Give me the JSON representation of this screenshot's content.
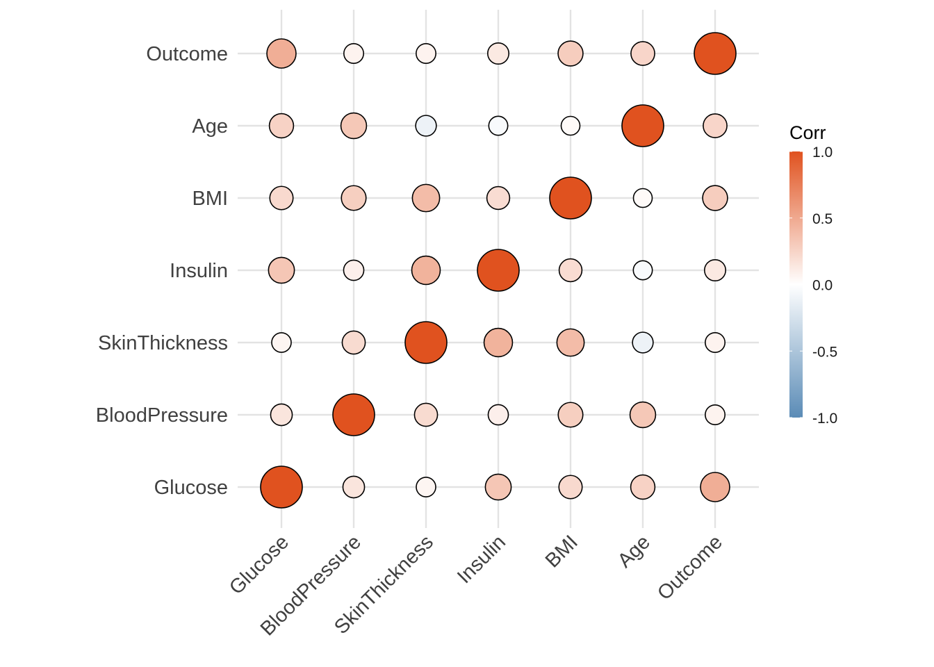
{
  "chart_data": {
    "type": "correlation-plot",
    "title": "",
    "xlabel": "",
    "ylabel": "",
    "variables": [
      "Glucose",
      "BloodPressure",
      "SkinThickness",
      "Insulin",
      "BMI",
      "Age",
      "Outcome"
    ],
    "matrix": [
      [
        1.0,
        0.15,
        0.06,
        0.33,
        0.22,
        0.26,
        0.47
      ],
      [
        0.15,
        1.0,
        0.21,
        0.09,
        0.28,
        0.32,
        0.07
      ],
      [
        0.06,
        0.21,
        1.0,
        0.44,
        0.39,
        -0.11,
        0.07
      ],
      [
        0.33,
        0.09,
        0.44,
        1.0,
        0.2,
        -0.04,
        0.13
      ],
      [
        0.22,
        0.28,
        0.39,
        0.2,
        1.0,
        0.03,
        0.29
      ],
      [
        0.26,
        0.32,
        -0.11,
        -0.04,
        0.03,
        1.0,
        0.24
      ],
      [
        0.47,
        0.07,
        0.07,
        0.13,
        0.29,
        0.24,
        1.0
      ]
    ],
    "legend": {
      "title": "Corr",
      "ticks": [
        "1.0",
        "0.5",
        "0.0",
        "-0.5",
        "-1.0"
      ],
      "tick_values": [
        1.0,
        0.5,
        0.0,
        -0.5,
        -1.0
      ],
      "placement": "right"
    },
    "colors": {
      "high": "#E0521F",
      "mid": "#FFFFFF",
      "low": "#5A8BB6",
      "grid": "#e3e3e3"
    }
  }
}
